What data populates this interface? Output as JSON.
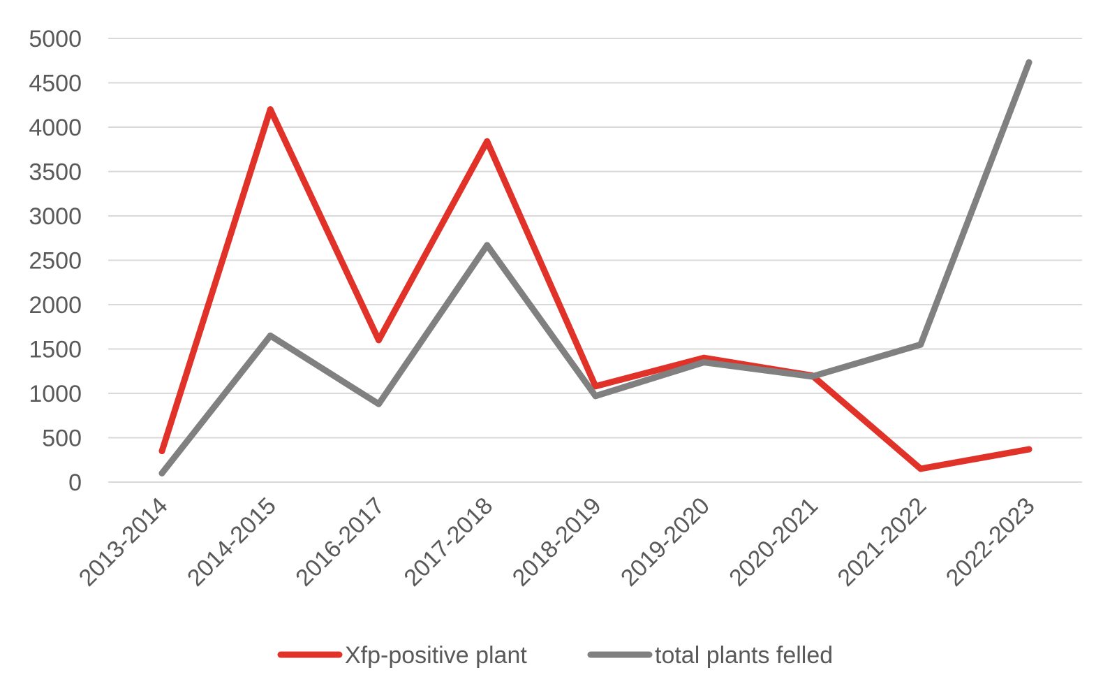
{
  "chart_data": {
    "type": "line",
    "categories": [
      "2013-2014",
      "2014-2015",
      "2016-2017",
      "2017-2018",
      "2018-2019",
      "2019-2020",
      "2020-2021",
      "2021-2022",
      "2022-2023"
    ],
    "series": [
      {
        "name": "Xfp-positive plant",
        "color": "#e03228",
        "values": [
          350,
          4200,
          1600,
          3840,
          1080,
          1400,
          1200,
          150,
          370
        ]
      },
      {
        "name": "total plants felled",
        "color": "#808080",
        "values": [
          100,
          1650,
          880,
          2670,
          970,
          1350,
          1190,
          1550,
          4730
        ]
      }
    ],
    "ylim": [
      0,
      5000
    ],
    "y_ticks": [
      "0",
      "500",
      "1000",
      "1500",
      "2000",
      "2500",
      "3000",
      "3500",
      "4000",
      "4500",
      "5000"
    ],
    "grid": true,
    "legend_position": "bottom"
  }
}
